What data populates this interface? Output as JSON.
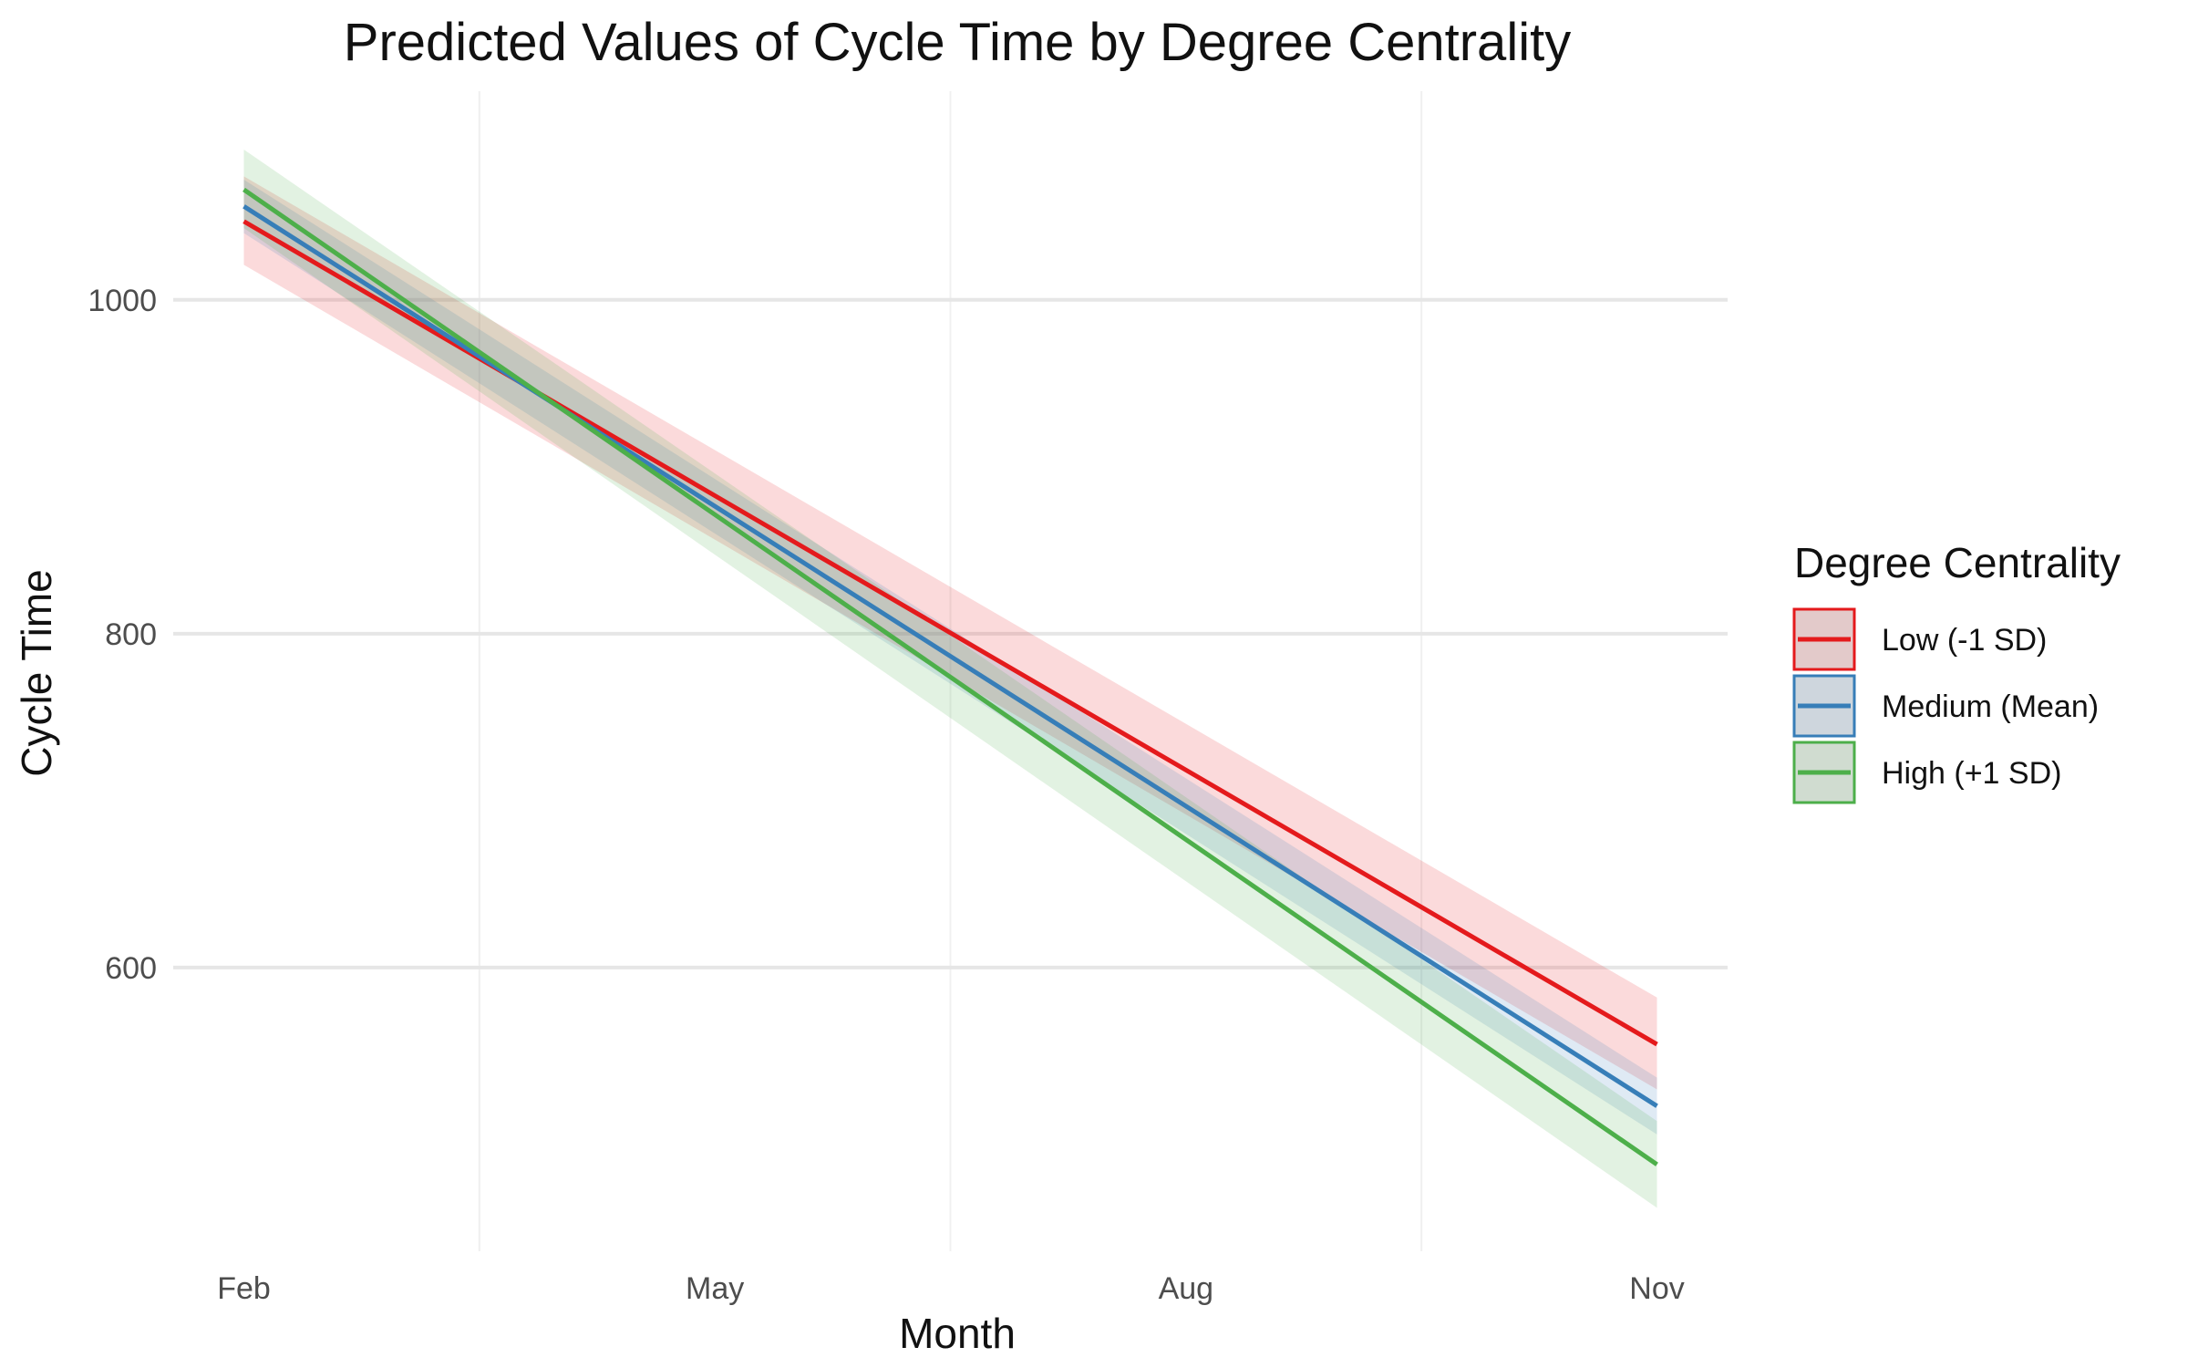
{
  "chart_data": {
    "type": "line",
    "title": "Predicted Values of Cycle Time by Degree Centrality",
    "xlabel": "Month",
    "ylabel": "Cycle Time",
    "x_ticks": [
      "Feb",
      "May",
      "Aug",
      "Nov"
    ],
    "x_tick_months": [
      2,
      5,
      8,
      11
    ],
    "xlim": [
      1.55,
      11.45
    ],
    "y_ticks": [
      600,
      800,
      1000
    ],
    "ylim": [
      430,
      1125
    ],
    "grid": true,
    "legend": {
      "title": "Degree Centrality",
      "placement": "right"
    },
    "series": [
      {
        "name": "Low (-1 SD)",
        "color": "#e41a1c",
        "x": [
          2,
          11
        ],
        "y": [
          1047,
          554
        ],
        "ci_low": [
          1021,
          527
        ],
        "ci_high": [
          1074,
          582
        ]
      },
      {
        "name": "Medium (Mean)",
        "color": "#377eb8",
        "x": [
          2,
          11
        ],
        "y": [
          1056,
          517
        ],
        "ci_low": [
          1040,
          500
        ],
        "ci_high": [
          1072,
          534
        ]
      },
      {
        "name": "High (+1 SD)",
        "color": "#4daf4a",
        "x": [
          2,
          11
        ],
        "y": [
          1066,
          482
        ],
        "ci_low": [
          1043,
          456
        ],
        "ci_high": [
          1090,
          508
        ]
      }
    ]
  }
}
